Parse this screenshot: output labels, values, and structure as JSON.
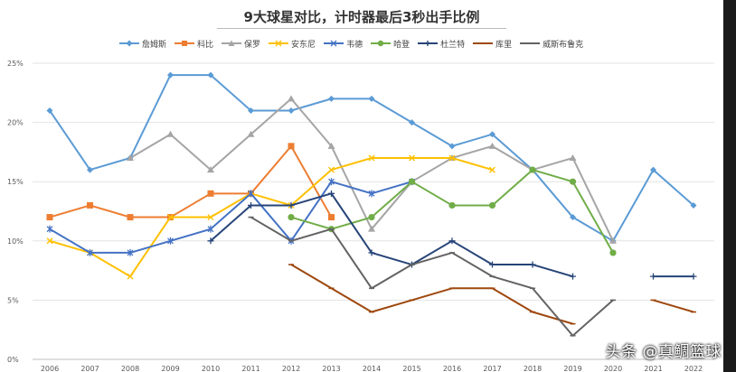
{
  "chart_data": {
    "type": "line",
    "title": "9大球星对比，计时器最后3秒出手比例",
    "categories": [
      "2006",
      "2007",
      "2008",
      "2009",
      "2010",
      "2011",
      "2012",
      "2013",
      "2014",
      "2015",
      "2016",
      "2017",
      "2018",
      "2019",
      "2020",
      "2021",
      "2022"
    ],
    "y_ticks": [
      "0%",
      "5%",
      "10%",
      "15%",
      "20%",
      "25%"
    ],
    "ylim": [
      0,
      25
    ],
    "grid": "horizontal",
    "legend_position": "top",
    "series": [
      {
        "name": "詹姆斯",
        "color": "#5B9BD5",
        "marker": "diamond",
        "values": [
          21,
          16,
          17,
          24,
          24,
          21,
          21,
          22,
          22,
          20,
          18,
          19,
          16,
          12,
          10,
          16,
          13
        ]
      },
      {
        "name": "科比",
        "color": "#ED7D31",
        "marker": "square",
        "values": [
          12,
          13,
          12,
          12,
          14,
          14,
          18,
          12,
          null,
          null,
          null,
          null,
          null,
          null,
          null,
          null,
          null
        ]
      },
      {
        "name": "保罗",
        "color": "#A5A5A5",
        "marker": "triangle",
        "values": [
          null,
          null,
          17,
          19,
          16,
          19,
          22,
          18,
          11,
          15,
          17,
          18,
          16,
          17,
          10,
          null,
          null
        ]
      },
      {
        "name": "安东尼",
        "color": "#FFC000",
        "marker": "x",
        "values": [
          10,
          9,
          7,
          12,
          12,
          14,
          13,
          16,
          17,
          17,
          17,
          16,
          null,
          null,
          null,
          null,
          null
        ]
      },
      {
        "name": "韦德",
        "color": "#4472C4",
        "marker": "star",
        "values": [
          11,
          9,
          9,
          10,
          11,
          14,
          10,
          15,
          14,
          15,
          null,
          null,
          null,
          null,
          null,
          null,
          null
        ]
      },
      {
        "name": "哈登",
        "color": "#70AD47",
        "marker": "circle",
        "values": [
          null,
          null,
          null,
          null,
          null,
          null,
          12,
          11,
          12,
          15,
          13,
          13,
          16,
          15,
          9,
          null,
          null
        ]
      },
      {
        "name": "杜兰特",
        "color": "#264478",
        "marker": "plus",
        "values": [
          null,
          null,
          null,
          null,
          10,
          13,
          13,
          14,
          9,
          8,
          10,
          8,
          8,
          7,
          null,
          7,
          7
        ]
      },
      {
        "name": "库里",
        "color": "#9E480E",
        "marker": "dash",
        "values": [
          null,
          null,
          null,
          null,
          null,
          null,
          8,
          6,
          4,
          5,
          6,
          6,
          4,
          3,
          null,
          5,
          4
        ]
      },
      {
        "name": "威斯布鲁克",
        "color": "#636363",
        "marker": "dash",
        "values": [
          null,
          null,
          null,
          null,
          null,
          12,
          10,
          11,
          6,
          8,
          9,
          7,
          6,
          2,
          5,
          null,
          null
        ]
      }
    ]
  },
  "watermark": "头条 @真鲷篮球"
}
